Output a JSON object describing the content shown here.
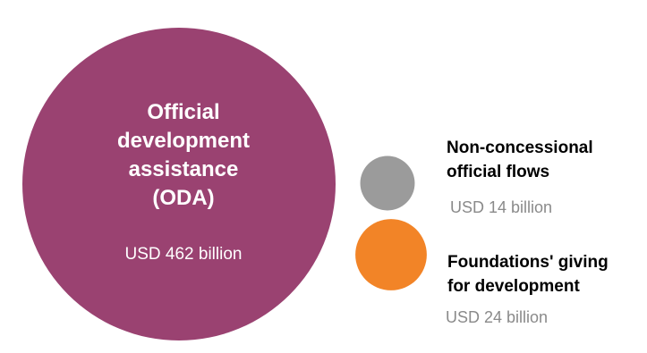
{
  "chart_data": {
    "type": "bubble",
    "title": "",
    "unit": "USD billion",
    "series": [
      {
        "name_lines": [
          "Official",
          "development",
          "assistance",
          "(ODA)"
        ],
        "value": 462,
        "value_label": "USD 462 billion",
        "color": "#9A4271",
        "text_color": "#ffffff"
      },
      {
        "name_lines": [
          "Non-concessional",
          "official flows"
        ],
        "value": 14,
        "value_label": "USD 14 billion",
        "color": "#9B9B9B",
        "text_color": "#000000"
      },
      {
        "name_lines": [
          "Foundations' giving",
          "for development"
        ],
        "value": 24,
        "value_label": "USD 24 billion",
        "color": "#F28427",
        "text_color": "#000000"
      }
    ],
    "value_text_color": "#8A8A8A"
  }
}
